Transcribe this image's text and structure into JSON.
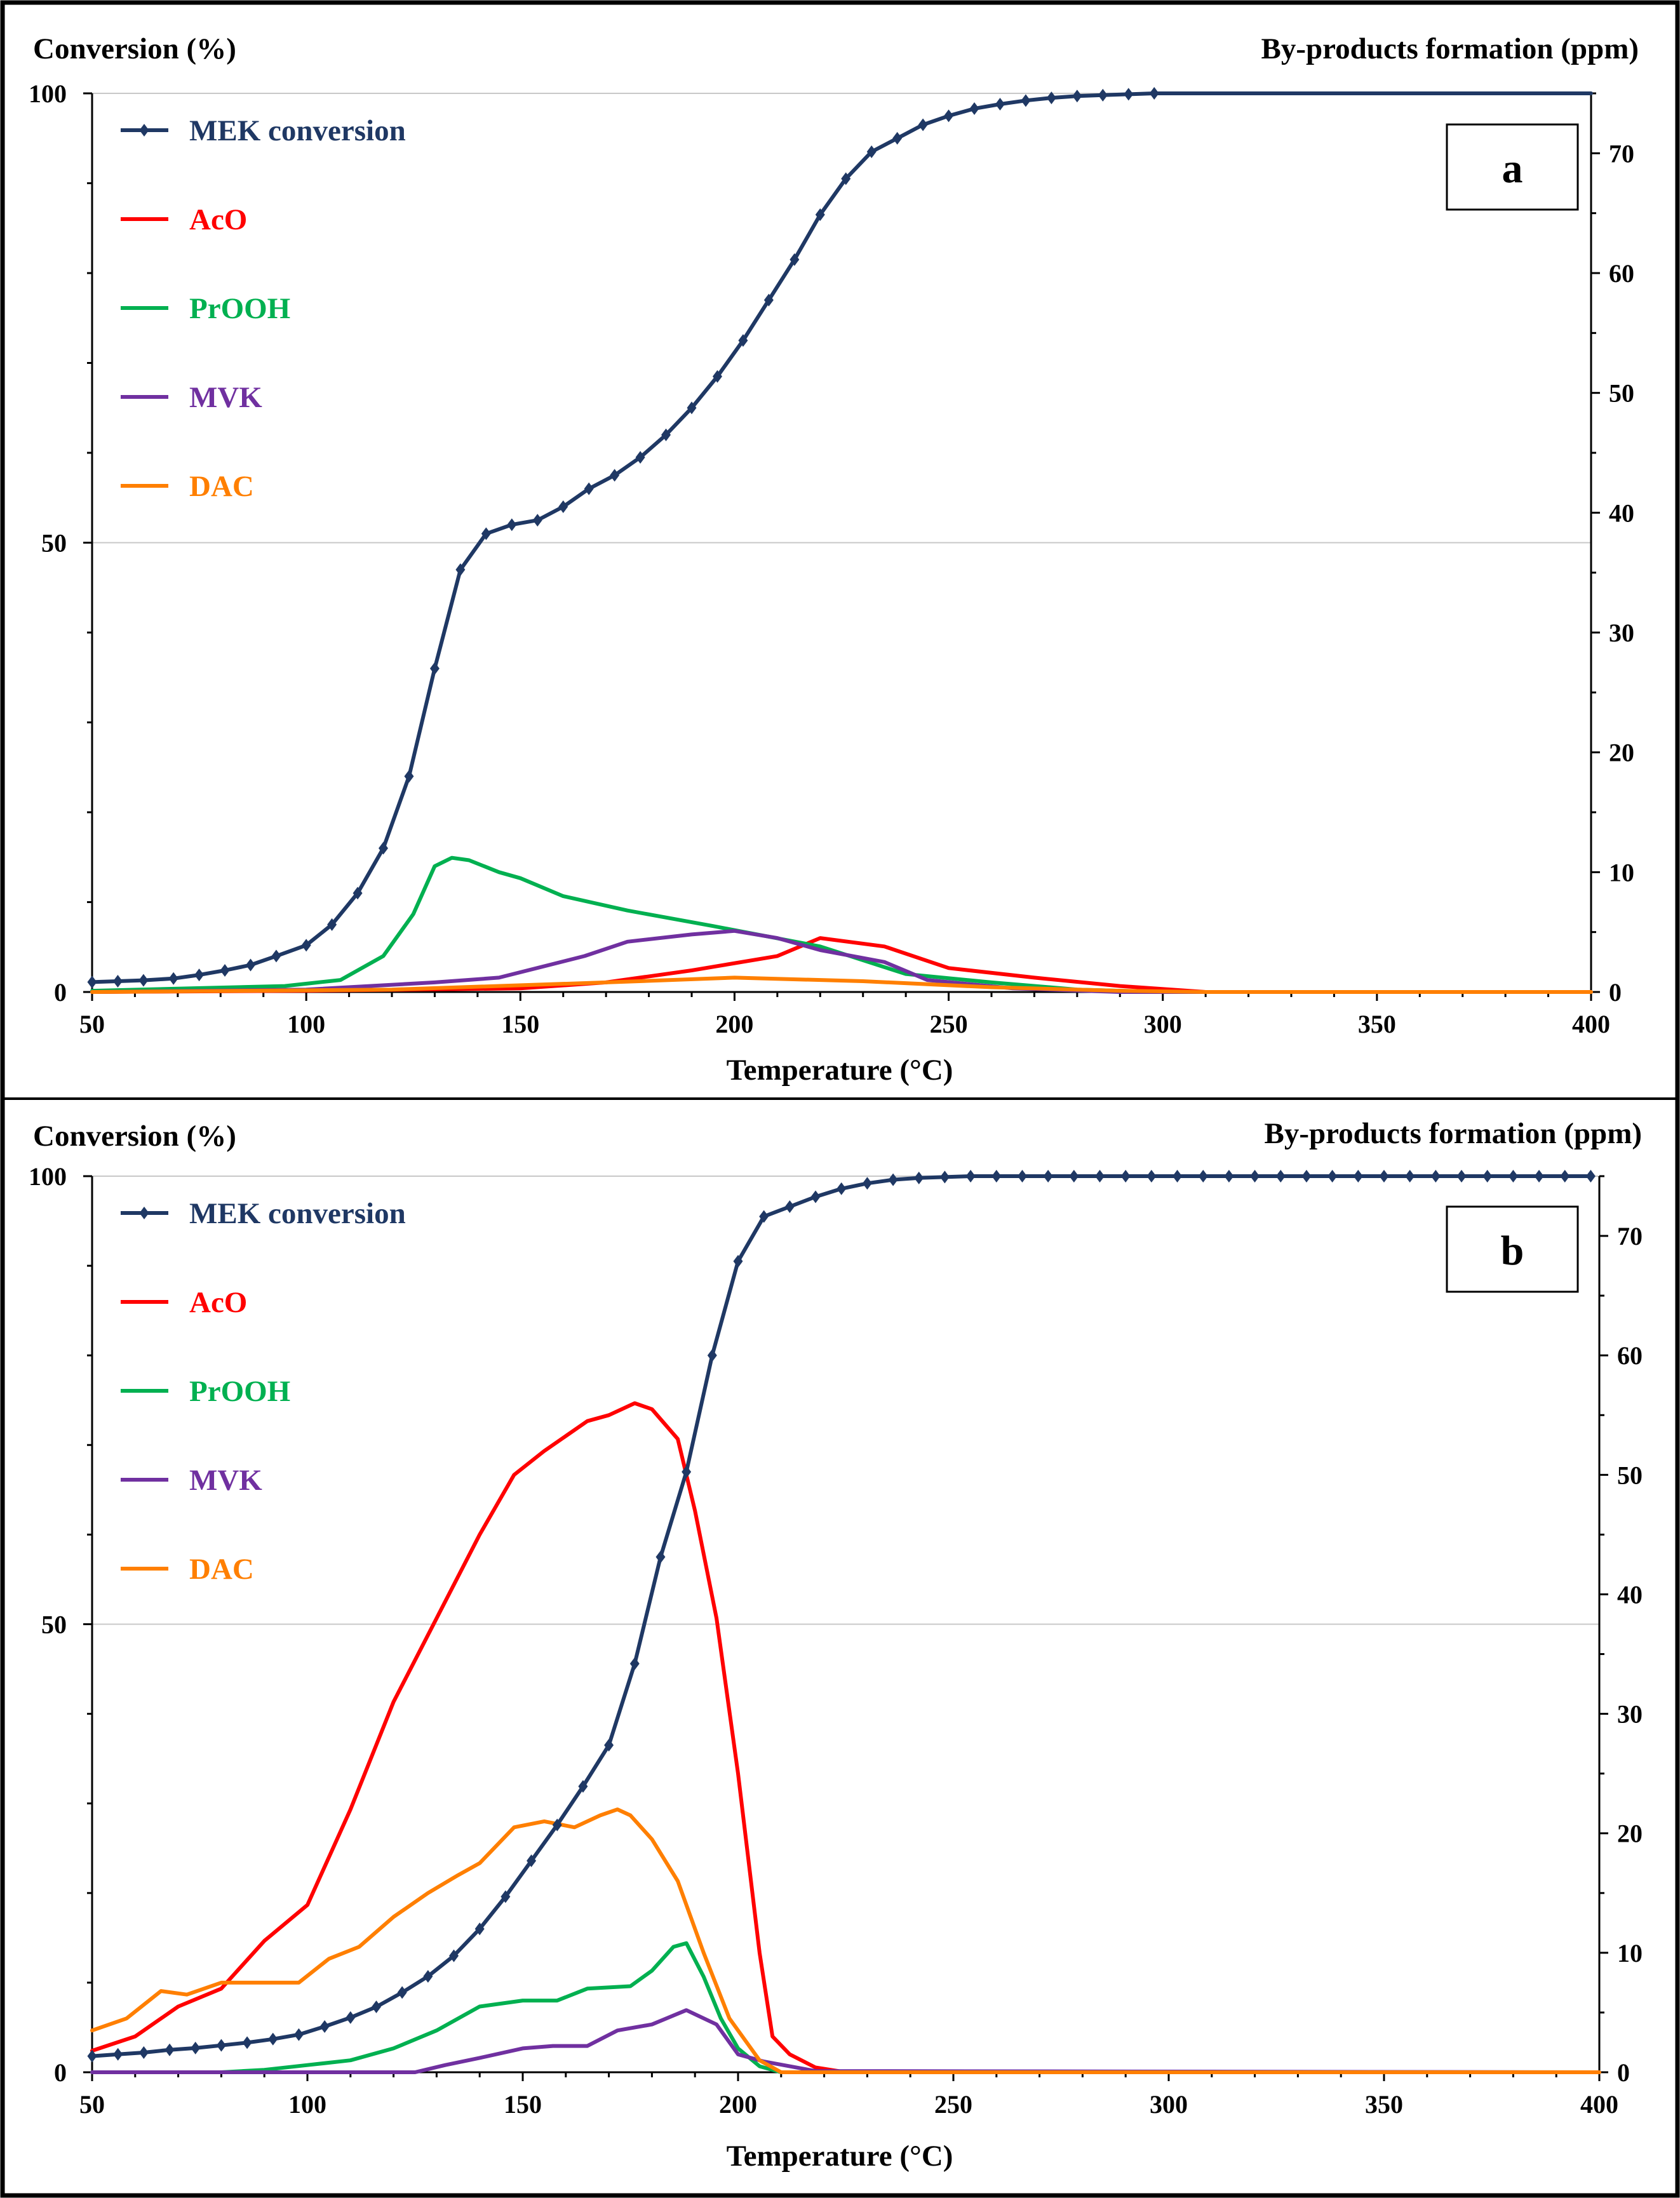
{
  "chart_data": [
    {
      "type": "line",
      "panel_label": "a",
      "title": "",
      "xlabel": "Temperature (°C)",
      "ylabel": "Conversion (%)",
      "y2label": "By-products formation (ppm)",
      "xlim": [
        50,
        400
      ],
      "ylim": [
        0,
        100
      ],
      "y2lim": [
        0,
        75
      ],
      "xticks": [
        "50",
        "100",
        "150",
        "200",
        "250",
        "300",
        "350",
        "400"
      ],
      "yticks": [
        "0",
        "50",
        "100"
      ],
      "y2ticks": [
        "0",
        "10",
        "20",
        "30",
        "40",
        "50",
        "60",
        "70"
      ],
      "grid": "horizontal at 50 and 100",
      "legend": "top-left",
      "series": [
        {
          "name": "MEK conversion",
          "axis": "left",
          "color": "#1f3864",
          "markers": true,
          "x": [
            50,
            56,
            62,
            69,
            75,
            81,
            87,
            93,
            100,
            106,
            112,
            118,
            124,
            130,
            136,
            142,
            148,
            154,
            160,
            166,
            172,
            178,
            184,
            190,
            196,
            202,
            208,
            214,
            220,
            226,
            232,
            238,
            244,
            250,
            256,
            262,
            268,
            274,
            280,
            286,
            292,
            298
          ],
          "y": [
            1.1,
            1.2,
            1.3,
            1.5,
            1.9,
            2.4,
            3.0,
            4.0,
            5.2,
            7.5,
            11.0,
            16.0,
            24.0,
            36.0,
            47.0,
            51.0,
            52.0,
            52.5,
            54.0,
            56.0,
            57.5,
            59.5,
            62.0,
            65.0,
            68.5,
            72.5,
            77.0,
            81.5,
            86.5,
            90.5,
            93.5,
            95.0,
            96.5,
            97.5,
            98.3,
            98.8,
            99.2,
            99.5,
            99.7,
            99.8,
            99.9,
            100.0
          ],
          "x_flat_end": 400
        },
        {
          "name": "AcO",
          "axis": "right",
          "color": "#ff0000",
          "x": [
            50,
            100,
            150,
            170,
            190,
            210,
            220,
            235,
            250,
            270,
            290,
            310,
            400
          ],
          "y": [
            0,
            0.1,
            0.3,
            0.8,
            1.8,
            3.0,
            4.5,
            3.8,
            2.0,
            1.2,
            0.5,
            0,
            0
          ]
        },
        {
          "name": "PrOOH",
          "axis": "right",
          "color": "#00b050",
          "x": [
            50,
            95,
            108,
            118,
            125,
            130,
            134,
            138,
            145,
            150,
            160,
            175,
            195,
            220,
            240,
            260,
            280,
            300,
            400
          ],
          "y": [
            0.1,
            0.5,
            1.0,
            3.0,
            6.5,
            10.5,
            11.2,
            11.0,
            10.0,
            9.5,
            8.0,
            6.8,
            5.5,
            3.8,
            1.5,
            0.8,
            0.2,
            0,
            0
          ]
        },
        {
          "name": "MVK",
          "axis": "right",
          "color": "#7030a0",
          "x": [
            50,
            100,
            130,
            145,
            165,
            175,
            190,
            200,
            210,
            220,
            235,
            245,
            265,
            290,
            400
          ],
          "y": [
            0,
            0.2,
            0.8,
            1.2,
            3.0,
            4.2,
            4.8,
            5.1,
            4.5,
            3.5,
            2.5,
            1.0,
            0.3,
            0,
            0
          ]
        },
        {
          "name": "DAC",
          "axis": "right",
          "color": "#ff7f00",
          "x": [
            50,
            120,
            170,
            200,
            230,
            260,
            290,
            310,
            400
          ],
          "y": [
            0,
            0.2,
            0.8,
            1.2,
            0.9,
            0.4,
            0.1,
            0,
            0
          ]
        }
      ],
      "legend_labels": [
        "MEK conversion",
        "AcO",
        "PrOOH",
        "MVK",
        "DAC"
      ]
    },
    {
      "type": "line",
      "panel_label": "b",
      "title": "",
      "xlabel": "Temperature (°C)",
      "ylabel": "Conversion (%)",
      "y2label": "By-products formation (ppm)",
      "xlim": [
        50,
        400
      ],
      "ylim": [
        0,
        100
      ],
      "y2lim": [
        0,
        75
      ],
      "xticks": [
        "50",
        "100",
        "150",
        "200",
        "250",
        "300",
        "350",
        "400"
      ],
      "yticks": [
        "0",
        "50",
        "100"
      ],
      "y2ticks": [
        "0",
        "10",
        "20",
        "30",
        "40",
        "50",
        "60",
        "70"
      ],
      "grid": "horizontal at 50 and 100",
      "legend": "top-left",
      "series": [
        {
          "name": "MEK conversion",
          "axis": "left",
          "color": "#1f3864",
          "markers": true,
          "x": [
            50,
            56,
            62,
            68,
            74,
            80,
            86,
            92,
            98,
            104,
            110,
            116,
            122,
            128,
            134,
            140,
            146,
            152,
            158,
            164,
            170,
            176,
            182,
            188,
            194,
            200,
            206,
            212,
            218,
            224,
            230,
            236,
            242,
            248,
            254,
            260,
            266,
            272,
            278,
            284,
            290,
            296,
            302,
            308,
            314,
            320,
            326,
            332,
            338,
            344,
            350,
            356,
            362,
            368,
            374,
            380,
            386,
            392,
            398
          ],
          "y": [
            1.8,
            2.0,
            2.2,
            2.5,
            2.7,
            3.0,
            3.3,
            3.7,
            4.2,
            5.1,
            6.1,
            7.3,
            8.9,
            10.7,
            13.0,
            16.0,
            19.6,
            23.6,
            27.6,
            31.9,
            36.5,
            45.6,
            57.5,
            67.0,
            80.0,
            90.5,
            95.5,
            96.6,
            97.7,
            98.6,
            99.2,
            99.6,
            99.8,
            99.9,
            100,
            100,
            100,
            100,
            100,
            100,
            100,
            100,
            100,
            100,
            100,
            100,
            100,
            100,
            100,
            100,
            100,
            100,
            100,
            100,
            100,
            100,
            100,
            100,
            100
          ]
        },
        {
          "name": "AcO",
          "axis": "right",
          "color": "#ff0000",
          "x": [
            50,
            60,
            70,
            80,
            90,
            100,
            110,
            120,
            130,
            140,
            148,
            155,
            165,
            170,
            176,
            180,
            186,
            190,
            195,
            200,
            205,
            208,
            212,
            218,
            225,
            400
          ],
          "y": [
            1.8,
            3.0,
            5.5,
            7.0,
            11.0,
            14.0,
            22.0,
            31.0,
            38.0,
            45.0,
            50.0,
            52.0,
            54.5,
            55.0,
            56.0,
            55.5,
            53.0,
            47.0,
            38.0,
            25.0,
            10.0,
            3.0,
            1.5,
            0.4,
            0,
            0
          ]
        },
        {
          "name": "PrOOH",
          "axis": "right",
          "color": "#00b050",
          "x": [
            50,
            80,
            90,
            100,
            110,
            120,
            130,
            140,
            150,
            158,
            165,
            175,
            180,
            185,
            188,
            192,
            196,
            200,
            205,
            210,
            400
          ],
          "y": [
            0,
            0,
            0.2,
            0.6,
            1.0,
            2.0,
            3.5,
            5.5,
            6.0,
            6.0,
            7.0,
            7.2,
            8.5,
            10.5,
            10.8,
            8.0,
            4.5,
            2.0,
            0.5,
            0,
            0
          ]
        },
        {
          "name": "MVK",
          "axis": "right",
          "color": "#7030a0",
          "x": [
            50,
            125,
            132,
            140,
            150,
            157,
            165,
            172,
            180,
            188,
            195,
            200,
            206,
            212,
            218,
            400
          ],
          "y": [
            0,
            0,
            0.6,
            1.2,
            2.0,
            2.2,
            2.2,
            3.5,
            4.0,
            5.2,
            4.0,
            1.5,
            0.9,
            0.5,
            0.1,
            0
          ]
        },
        {
          "name": "DAC",
          "axis": "right",
          "color": "#ff7f00",
          "x": [
            50,
            58,
            66,
            72,
            80,
            88,
            98,
            105,
            112,
            120,
            128,
            135,
            140,
            148,
            155,
            162,
            168,
            172,
            175,
            180,
            186,
            192,
            198,
            205,
            210,
            400
          ],
          "y": [
            3.5,
            4.5,
            6.8,
            6.5,
            7.5,
            7.5,
            7.5,
            9.5,
            10.5,
            13.0,
            15.0,
            16.5,
            17.5,
            20.5,
            21.0,
            20.5,
            21.5,
            22.0,
            21.5,
            19.5,
            16.0,
            10.0,
            4.5,
            1.0,
            0,
            0
          ]
        },
        {
          "name": "_unused",
          "axis": "right",
          "color": "#ffffff",
          "x": [],
          "y": []
        }
      ],
      "legend_labels": [
        "MEK conversion",
        "AcO",
        "PrOOH",
        "MVK",
        "DAC"
      ]
    }
  ]
}
